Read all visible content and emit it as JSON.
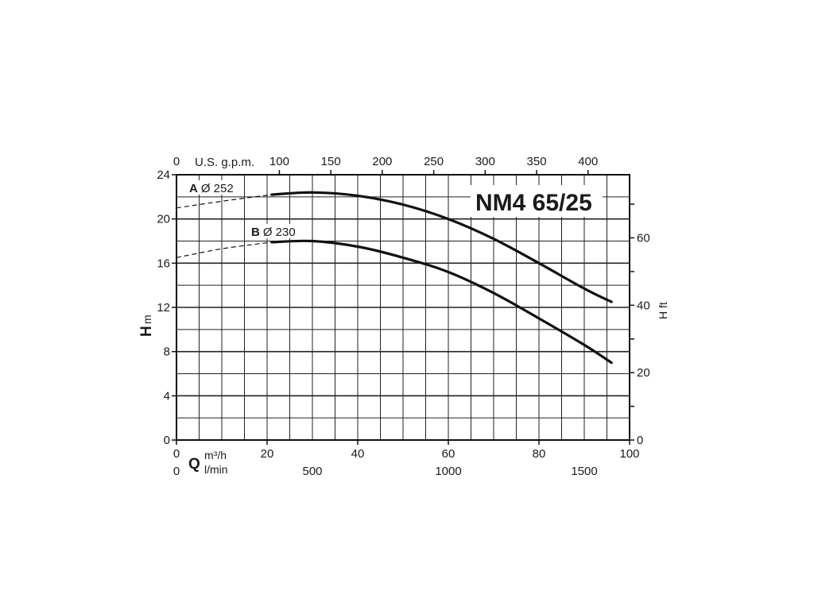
{
  "chart_data": {
    "type": "line",
    "title": "NM4 65/25",
    "xlabel": {
      "symbol": "Q",
      "unit_primary": "m³/h",
      "unit_secondary": "l/min"
    },
    "ylabel": {
      "symbol": "H",
      "unit": "m"
    },
    "y2label": "H ft",
    "x2label": "U.S. g.p.m.",
    "xlim": [
      0,
      100
    ],
    "ylim": [
      0,
      24
    ],
    "grid": true,
    "x_ticks": [
      "0",
      "20",
      "40",
      "60",
      "80",
      "100"
    ],
    "x_ticks_lmin": [
      "0",
      "500",
      "1000",
      "1500"
    ],
    "x_ticks_gpm": [
      "0",
      "100",
      "150",
      "200",
      "250",
      "300",
      "350",
      "400"
    ],
    "y_ticks": [
      "0",
      "4",
      "8",
      "12",
      "16",
      "20",
      "24"
    ],
    "y2_ticks": [
      "0",
      "20",
      "40",
      "60"
    ],
    "series": [
      {
        "name": "Ø 252",
        "letter": "A",
        "dashed_points": [
          [
            0,
            21.0
          ],
          [
            10,
            21.6
          ],
          [
            21,
            22.2
          ]
        ],
        "points": [
          [
            21,
            22.2
          ],
          [
            30,
            22.4
          ],
          [
            40,
            22.1
          ],
          [
            50,
            21.3
          ],
          [
            60,
            20.0
          ],
          [
            70,
            18.2
          ],
          [
            80,
            16.0
          ],
          [
            90,
            13.7
          ],
          [
            96,
            12.5
          ]
        ]
      },
      {
        "name": "Ø 230",
        "letter": "B",
        "dashed_points": [
          [
            0,
            16.5
          ],
          [
            10,
            17.3
          ],
          [
            21,
            17.9
          ]
        ],
        "points": [
          [
            21,
            17.9
          ],
          [
            30,
            18.0
          ],
          [
            40,
            17.5
          ],
          [
            50,
            16.5
          ],
          [
            60,
            15.2
          ],
          [
            70,
            13.3
          ],
          [
            80,
            11.0
          ],
          [
            90,
            8.6
          ],
          [
            96,
            7.0
          ]
        ]
      }
    ]
  }
}
